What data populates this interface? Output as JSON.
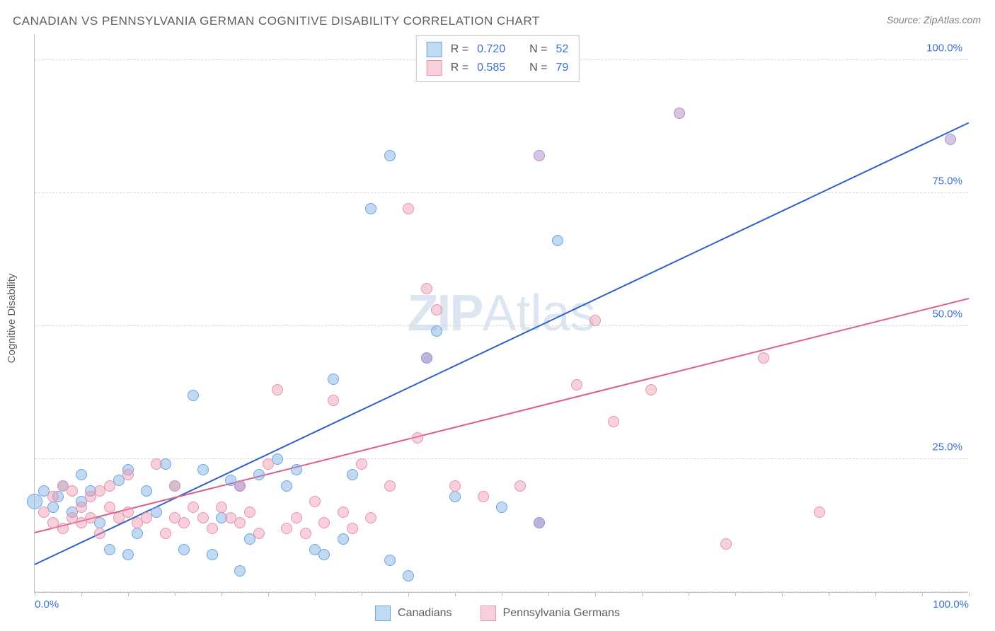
{
  "title": "CANADIAN VS PENNSYLVANIA GERMAN COGNITIVE DISABILITY CORRELATION CHART",
  "source": "Source: ZipAtlas.com",
  "y_axis_label": "Cognitive Disability",
  "watermark": {
    "bold": "ZIP",
    "light": "Atlas"
  },
  "plot": {
    "xlim": [
      0,
      100
    ],
    "ylim": [
      0,
      105
    ],
    "grid_y_values": [
      0,
      25,
      50,
      75,
      100
    ],
    "grid_color": "#d8d8d8",
    "y_ticks": [
      {
        "v": 25,
        "label": "25.0%"
      },
      {
        "v": 50,
        "label": "50.0%"
      },
      {
        "v": 75,
        "label": "75.0%"
      },
      {
        "v": 100,
        "label": "100.0%"
      }
    ],
    "x_ticks_labeled": [
      {
        "v": 0,
        "label": "0.0%"
      },
      {
        "v": 100,
        "label": "100.0%"
      }
    ],
    "x_tick_marks": [
      0,
      5,
      10,
      15,
      20,
      25,
      30,
      35,
      40,
      45,
      50,
      55,
      60,
      65,
      70,
      75,
      80,
      85,
      90,
      95,
      100
    ],
    "marker_radius": 8,
    "marker_radius_large": 11,
    "background_color": "#ffffff"
  },
  "series": [
    {
      "id": "canadians",
      "label": "Canadians",
      "color_fill": "rgba(120,170,230,0.45)",
      "color_stroke": "#6aa5dd",
      "trend": {
        "x1": 0,
        "y1": 5,
        "x2": 100,
        "y2": 88,
        "color": "#2c5fd0",
        "width": 2
      },
      "legend_r": "0.720",
      "legend_n": "52",
      "points": [
        {
          "x": 0,
          "y": 17,
          "large": true
        },
        {
          "x": 1,
          "y": 19
        },
        {
          "x": 2,
          "y": 16
        },
        {
          "x": 2.5,
          "y": 18
        },
        {
          "x": 3,
          "y": 20
        },
        {
          "x": 4,
          "y": 15
        },
        {
          "x": 5,
          "y": 17
        },
        {
          "x": 5,
          "y": 22
        },
        {
          "x": 6,
          "y": 19
        },
        {
          "x": 7,
          "y": 13
        },
        {
          "x": 8,
          "y": 8
        },
        {
          "x": 9,
          "y": 21
        },
        {
          "x": 10,
          "y": 7
        },
        {
          "x": 10,
          "y": 23
        },
        {
          "x": 11,
          "y": 11
        },
        {
          "x": 12,
          "y": 19
        },
        {
          "x": 13,
          "y": 15
        },
        {
          "x": 14,
          "y": 24
        },
        {
          "x": 15,
          "y": 20
        },
        {
          "x": 16,
          "y": 8
        },
        {
          "x": 17,
          "y": 37
        },
        {
          "x": 18,
          "y": 23
        },
        {
          "x": 19,
          "y": 7
        },
        {
          "x": 20,
          "y": 14
        },
        {
          "x": 21,
          "y": 21
        },
        {
          "x": 22,
          "y": 4
        },
        {
          "x": 23,
          "y": 10
        },
        {
          "x": 24,
          "y": 22
        },
        {
          "x": 26,
          "y": 25
        },
        {
          "x": 27,
          "y": 20
        },
        {
          "x": 28,
          "y": 23
        },
        {
          "x": 30,
          "y": 8
        },
        {
          "x": 31,
          "y": 7
        },
        {
          "x": 32,
          "y": 40
        },
        {
          "x": 33,
          "y": 10
        },
        {
          "x": 34,
          "y": 22
        },
        {
          "x": 36,
          "y": 72
        },
        {
          "x": 38,
          "y": 6
        },
        {
          "x": 38,
          "y": 82
        },
        {
          "x": 40,
          "y": 3
        },
        {
          "x": 42,
          "y": 44
        },
        {
          "x": 43,
          "y": 49
        },
        {
          "x": 45,
          "y": 18
        },
        {
          "x": 50,
          "y": 16
        },
        {
          "x": 54,
          "y": 13
        },
        {
          "x": 56,
          "y": 66
        }
      ]
    },
    {
      "id": "pa_germans",
      "label": "Pennsylvania Germans",
      "color_fill": "rgba(240,150,175,0.45)",
      "color_stroke": "#e893aa",
      "trend": {
        "x1": 0,
        "y1": 11,
        "x2": 100,
        "y2": 55,
        "color": "#e05d85",
        "width": 2
      },
      "legend_r": "0.585",
      "legend_n": "79",
      "points": [
        {
          "x": 1,
          "y": 15
        },
        {
          "x": 2,
          "y": 13
        },
        {
          "x": 2,
          "y": 18
        },
        {
          "x": 3,
          "y": 12
        },
        {
          "x": 3,
          "y": 20
        },
        {
          "x": 4,
          "y": 14
        },
        {
          "x": 4,
          "y": 19
        },
        {
          "x": 5,
          "y": 13
        },
        {
          "x": 5,
          "y": 16
        },
        {
          "x": 6,
          "y": 18
        },
        {
          "x": 6,
          "y": 14
        },
        {
          "x": 7,
          "y": 19
        },
        {
          "x": 7,
          "y": 11
        },
        {
          "x": 8,
          "y": 16
        },
        {
          "x": 8,
          "y": 20
        },
        {
          "x": 9,
          "y": 14
        },
        {
          "x": 10,
          "y": 15
        },
        {
          "x": 10,
          "y": 22
        },
        {
          "x": 11,
          "y": 13
        },
        {
          "x": 12,
          "y": 14
        },
        {
          "x": 13,
          "y": 24
        },
        {
          "x": 14,
          "y": 11
        },
        {
          "x": 15,
          "y": 14
        },
        {
          "x": 15,
          "y": 20
        },
        {
          "x": 16,
          "y": 13
        },
        {
          "x": 17,
          "y": 16
        },
        {
          "x": 18,
          "y": 14
        },
        {
          "x": 19,
          "y": 12
        },
        {
          "x": 20,
          "y": 16
        },
        {
          "x": 21,
          "y": 14
        },
        {
          "x": 22,
          "y": 20
        },
        {
          "x": 22,
          "y": 13
        },
        {
          "x": 23,
          "y": 15
        },
        {
          "x": 24,
          "y": 11
        },
        {
          "x": 25,
          "y": 24
        },
        {
          "x": 26,
          "y": 38
        },
        {
          "x": 27,
          "y": 12
        },
        {
          "x": 28,
          "y": 14
        },
        {
          "x": 29,
          "y": 11
        },
        {
          "x": 30,
          "y": 17
        },
        {
          "x": 31,
          "y": 13
        },
        {
          "x": 32,
          "y": 36
        },
        {
          "x": 33,
          "y": 15
        },
        {
          "x": 34,
          "y": 12
        },
        {
          "x": 35,
          "y": 24
        },
        {
          "x": 36,
          "y": 14
        },
        {
          "x": 38,
          "y": 20
        },
        {
          "x": 40,
          "y": 72
        },
        {
          "x": 41,
          "y": 29
        },
        {
          "x": 42,
          "y": 57
        },
        {
          "x": 43,
          "y": 53
        },
        {
          "x": 45,
          "y": 20
        },
        {
          "x": 48,
          "y": 18
        },
        {
          "x": 52,
          "y": 20
        },
        {
          "x": 58,
          "y": 39
        },
        {
          "x": 60,
          "y": 51
        },
        {
          "x": 62,
          "y": 32
        },
        {
          "x": 66,
          "y": 38
        },
        {
          "x": 74,
          "y": 9
        },
        {
          "x": 78,
          "y": 44
        },
        {
          "x": 84,
          "y": 15
        }
      ]
    },
    {
      "id": "overlap",
      "label": "",
      "color_fill": "rgba(180,150,210,0.55)",
      "color_stroke": "#a895c8",
      "trend": null,
      "points": [
        {
          "x": 22,
          "y": 20
        },
        {
          "x": 42,
          "y": 44
        },
        {
          "x": 54,
          "y": 82
        },
        {
          "x": 54,
          "y": 13
        },
        {
          "x": 69,
          "y": 90
        },
        {
          "x": 98,
          "y": 85
        }
      ]
    }
  ],
  "legend_top": {
    "r_label": "R =",
    "n_label": "N ="
  },
  "legend_bottom": [
    {
      "series": 0
    },
    {
      "series": 1
    }
  ]
}
